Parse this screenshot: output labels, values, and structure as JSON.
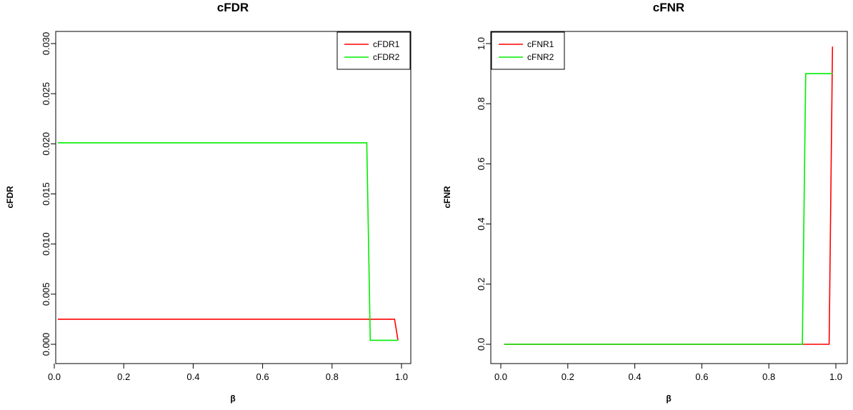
{
  "chart_data": [
    {
      "type": "line",
      "title": "cFDR",
      "xlabel": "β",
      "ylabel": "cFDR",
      "xlim": [
        0,
        1
      ],
      "ylim": [
        0,
        0.03
      ],
      "xticks": [
        "0.0",
        "0.2",
        "0.4",
        "0.6",
        "0.8",
        "1.0"
      ],
      "yticks": [
        "0.000",
        "0.005",
        "0.010",
        "0.015",
        "0.020",
        "0.025",
        "0.030"
      ],
      "legend_position": "top-right",
      "series": [
        {
          "name": "cFDR1",
          "color": "#ff0000",
          "x": [
            0.01,
            0.98,
            0.99
          ],
          "y": [
            0.0025,
            0.0025,
            0.0004
          ]
        },
        {
          "name": "cFDR2",
          "color": "#00ee00",
          "x": [
            0.01,
            0.9,
            0.91,
            0.99
          ],
          "y": [
            0.0201,
            0.0201,
            0.0004,
            0.0004
          ]
        }
      ]
    },
    {
      "type": "line",
      "title": "cFNR",
      "xlabel": "β",
      "ylabel": "cFNR",
      "xlim": [
        0,
        1
      ],
      "ylim": [
        0,
        1
      ],
      "xticks": [
        "0.0",
        "0.2",
        "0.4",
        "0.6",
        "0.8",
        "1.0"
      ],
      "yticks": [
        "0.0",
        "0.2",
        "0.4",
        "0.6",
        "0.8",
        "1.0"
      ],
      "legend_position": "top-left",
      "series": [
        {
          "name": "cFNR1",
          "color": "#ff0000",
          "x": [
            0.01,
            0.98,
            0.99
          ],
          "y": [
            0.0,
            0.0,
            0.99
          ]
        },
        {
          "name": "cFNR2",
          "color": "#00ee00",
          "x": [
            0.01,
            0.9,
            0.91,
            0.99
          ],
          "y": [
            0.0,
            0.0,
            0.9,
            0.9
          ]
        }
      ]
    }
  ]
}
